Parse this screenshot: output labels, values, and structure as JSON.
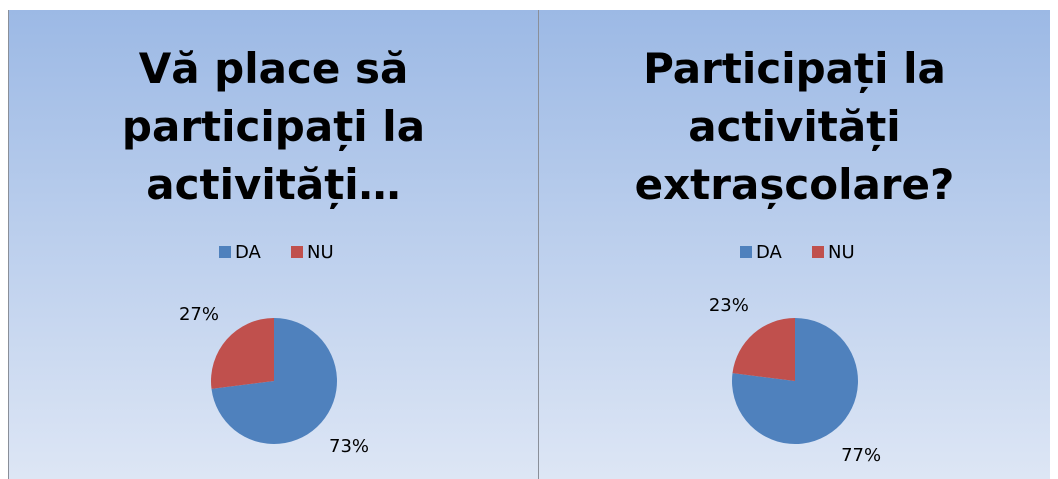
{
  "chart_data": [
    {
      "type": "pie",
      "title": "Vă place să participați la activități…",
      "categories": [
        "DA",
        "NU"
      ],
      "values": [
        73,
        27
      ],
      "value_labels": [
        "73%",
        "27%"
      ],
      "colors": [
        "#4f81bd",
        "#c0504d"
      ],
      "legend": "top"
    },
    {
      "type": "pie",
      "title": "Participați la activități extrașcolare?",
      "categories": [
        "DA",
        "NU"
      ],
      "values": [
        77,
        23
      ],
      "value_labels": [
        "77%",
        "23%"
      ],
      "colors": [
        "#4f81bd",
        "#c0504d"
      ],
      "legend": "top"
    }
  ]
}
